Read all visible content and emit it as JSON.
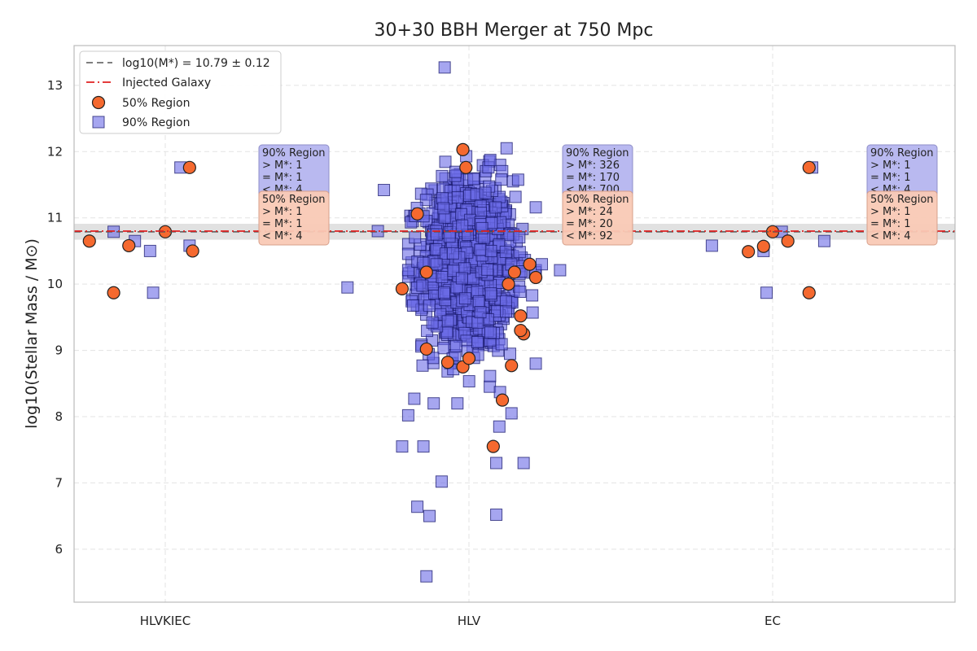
{
  "chart_data": {
    "type": "scatter",
    "title": "30+30 BBH Merger at 750 Mpc",
    "ylabel": "log10(Stellar Mass / M⊙)",
    "ylim": [
      5.2,
      13.6
    ],
    "yticks": [
      6,
      7,
      8,
      9,
      10,
      11,
      12,
      13
    ],
    "categories": [
      "HLVKIEC",
      "HLV",
      "EC"
    ],
    "grid": true,
    "legend_position": "top-left",
    "colors": {
      "region50": "#f5692f",
      "region90": "#6b6be6",
      "injected": "#e02020",
      "mean": "#555555",
      "band": "#d4d4d4"
    },
    "legend": [
      "log10(M*) = 10.79 ± 0.12",
      "Injected Galaxy",
      "50% Region",
      "90% Region"
    ],
    "mean_log_mass": 10.79,
    "mean_uncertainty": 0.12,
    "injected_log_mass": 10.8,
    "series": [
      {
        "name": "50% Region",
        "marker": "circle",
        "groups": [
          {
            "category": "HLVKIEC",
            "points": [
              [
                -0.25,
                10.65
              ],
              [
                -0.17,
                9.87
              ],
              [
                -0.12,
                10.58
              ],
              [
                0.0,
                10.79
              ],
              [
                0.08,
                11.76
              ],
              [
                0.09,
                10.5
              ]
            ]
          },
          {
            "category": "HLV",
            "points": [
              [
                -0.02,
                12.03
              ],
              [
                -0.01,
                11.76
              ],
              [
                -0.17,
                11.06
              ],
              [
                -0.14,
                10.18
              ],
              [
                -0.22,
                9.93
              ],
              [
                -0.14,
                9.02
              ],
              [
                -0.07,
                8.82
              ],
              [
                -0.02,
                8.75
              ],
              [
                0.0,
                8.88
              ],
              [
                0.15,
                10.18
              ],
              [
                0.13,
                10.0
              ],
              [
                0.17,
                9.52
              ],
              [
                0.18,
                9.25
              ],
              [
                0.17,
                9.3
              ],
              [
                0.14,
                8.77
              ],
              [
                0.11,
                8.25
              ],
              [
                0.08,
                7.55
              ],
              [
                0.22,
                10.1
              ],
              [
                0.2,
                10.3
              ]
            ]
          },
          {
            "category": "EC",
            "points": [
              [
                -0.08,
                10.49
              ],
              [
                -0.03,
                10.57
              ],
              [
                0.0,
                10.79
              ],
              [
                0.05,
                10.65
              ],
              [
                0.12,
                11.76
              ],
              [
                0.12,
                9.87
              ]
            ]
          }
        ]
      },
      {
        "name": "90% Region",
        "marker": "square",
        "groups": [
          {
            "category": "HLVKIEC",
            "points": [
              [
                -0.17,
                10.79
              ],
              [
                -0.1,
                10.65
              ],
              [
                -0.05,
                10.5
              ],
              [
                -0.04,
                9.87
              ],
              [
                0.05,
                11.76
              ],
              [
                0.08,
                10.58
              ]
            ]
          },
          {
            "category": "HLV",
            "count": 1196,
            "x_center": 0.0,
            "x_spread": 0.12,
            "y_mean": 10.3,
            "y_spread": 0.9,
            "outliers": [
              [
                -0.08,
                13.27
              ],
              [
                -0.4,
                9.95
              ],
              [
                -0.3,
                10.8
              ],
              [
                -0.2,
                8.02
              ],
              [
                -0.22,
                7.55
              ],
              [
                -0.15,
                7.55
              ],
              [
                -0.17,
                6.64
              ],
              [
                -0.13,
                6.5
              ],
              [
                -0.09,
                7.02
              ],
              [
                -0.14,
                5.59
              ],
              [
                0.09,
                6.52
              ],
              [
                0.18,
                7.3
              ],
              [
                0.09,
                7.3
              ],
              [
                0.22,
                8.8
              ],
              [
                0.1,
                7.85
              ],
              [
                -0.18,
                8.27
              ],
              [
                0.14,
                8.05
              ],
              [
                0.24,
                10.3
              ],
              [
                0.3,
                10.21
              ],
              [
                -0.28,
                11.42
              ]
            ]
          },
          {
            "category": "EC",
            "points": [
              [
                -0.2,
                10.58
              ],
              [
                -0.03,
                10.5
              ],
              [
                -0.02,
                9.87
              ],
              [
                0.03,
                10.79
              ],
              [
                0.13,
                11.76
              ],
              [
                0.17,
                10.65
              ]
            ]
          }
        ]
      }
    ],
    "annotations": [
      {
        "category": "HLVKIEC",
        "r90": [
          "90% Region",
          "> M*: 1",
          "= M*: 1",
          "< M*: 4"
        ],
        "r50": [
          "50% Region",
          "> M*: 1",
          "= M*: 1",
          "< M*: 4"
        ]
      },
      {
        "category": "HLV",
        "r90": [
          "90% Region",
          "> M*: 326",
          "= M*: 170",
          "< M*: 700"
        ],
        "r50": [
          "50% Region",
          "> M*: 24",
          "= M*: 20",
          "< M*: 92"
        ]
      },
      {
        "category": "EC",
        "r90": [
          "90% Region",
          "> M*: 1",
          "= M*: 1",
          "< M*: 4"
        ],
        "r50": [
          "50% Region",
          "> M*: 1",
          "= M*: 1",
          "< M*: 4"
        ]
      }
    ]
  }
}
